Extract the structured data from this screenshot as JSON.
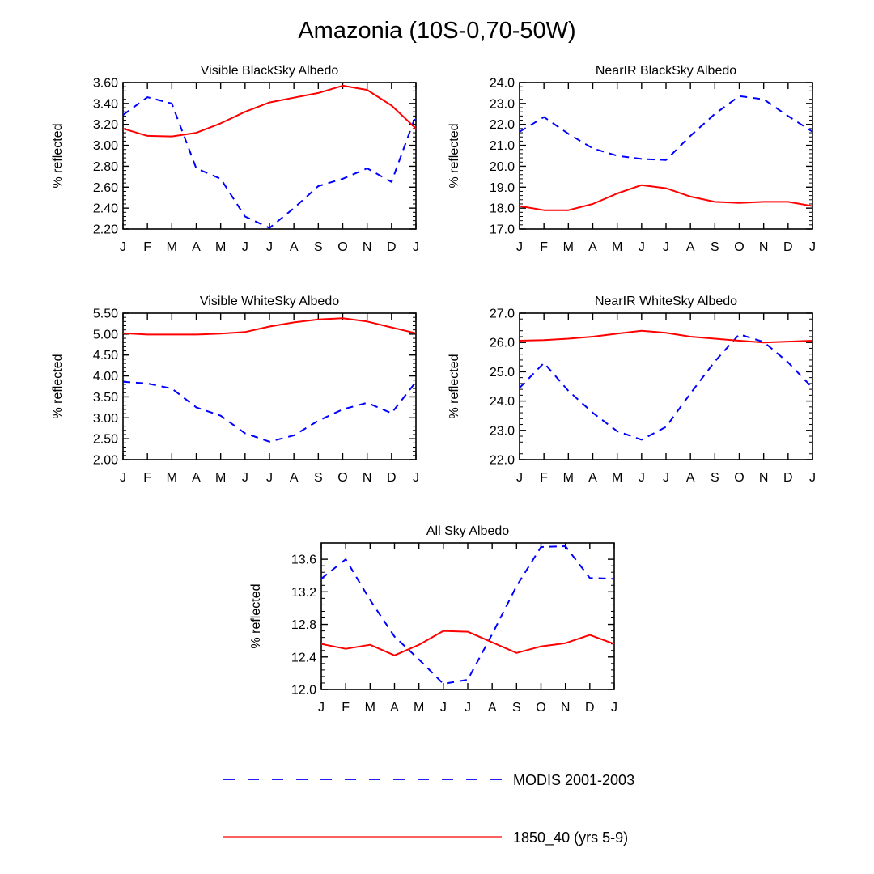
{
  "title": "Amazonia (10S-0,70-50W)",
  "legend": {
    "placement": "bottom",
    "entries": [
      {
        "label": "MODIS 2001-2003",
        "color": "#0000ff",
        "style": "dashed"
      },
      {
        "label": "1850_40 (yrs 5-9)",
        "color": "#ff0000",
        "style": "solid"
      }
    ]
  },
  "chart_data": [
    {
      "type": "line",
      "title": "Visible BlackSky Albedo",
      "xlabel": "",
      "ylabel": "% reflected",
      "categories": [
        "J",
        "F",
        "M",
        "A",
        "M",
        "J",
        "J",
        "A",
        "S",
        "O",
        "N",
        "D",
        "J"
      ],
      "ylim": [
        2.2,
        3.6
      ],
      "yticks": [
        2.2,
        2.4,
        2.6,
        2.8,
        3.0,
        3.2,
        3.4,
        3.6
      ],
      "ytick_labels": [
        "2.20",
        "2.40",
        "2.60",
        "2.80",
        "3.00",
        "3.20",
        "3.40",
        "3.60"
      ],
      "grid": false,
      "series": [
        {
          "name": "MODIS 2001-2003",
          "values": [
            3.29,
            3.46,
            3.4,
            2.78,
            2.68,
            2.32,
            2.21,
            2.4,
            2.61,
            2.68,
            2.78,
            2.65,
            3.29
          ]
        },
        {
          "name": "1850_40 (yrs 5-9)",
          "values": [
            3.16,
            3.09,
            3.085,
            3.12,
            3.21,
            3.32,
            3.41,
            3.455,
            3.5,
            3.57,
            3.53,
            3.38,
            3.16
          ]
        }
      ]
    },
    {
      "type": "line",
      "title": "NearIR BlackSky Albedo",
      "xlabel": "",
      "ylabel": "% reflected",
      "categories": [
        "J",
        "F",
        "M",
        "A",
        "M",
        "J",
        "J",
        "A",
        "S",
        "O",
        "N",
        "D",
        "J"
      ],
      "ylim": [
        17.0,
        24.0
      ],
      "yticks": [
        17,
        18,
        19,
        20,
        21,
        22,
        23,
        24
      ],
      "ytick_labels": [
        "17.0",
        "18.0",
        "19.0",
        "20.0",
        "21.0",
        "22.0",
        "23.0",
        "24.0"
      ],
      "grid": false,
      "series": [
        {
          "name": "MODIS 2001-2003",
          "values": [
            21.65,
            22.35,
            21.55,
            20.85,
            20.5,
            20.35,
            20.3,
            21.45,
            22.5,
            23.35,
            23.2,
            22.4,
            21.65
          ]
        },
        {
          "name": "1850_40 (yrs 5-9)",
          "values": [
            18.1,
            17.9,
            17.9,
            18.2,
            18.7,
            19.1,
            18.95,
            18.55,
            18.3,
            18.25,
            18.3,
            18.3,
            18.1
          ]
        }
      ]
    },
    {
      "type": "line",
      "title": "Visible WhiteSky Albedo",
      "xlabel": "",
      "ylabel": "% reflected",
      "categories": [
        "J",
        "F",
        "M",
        "A",
        "M",
        "J",
        "J",
        "A",
        "S",
        "O",
        "N",
        "D",
        "J"
      ],
      "ylim": [
        2.0,
        5.5
      ],
      "yticks": [
        2.0,
        2.5,
        3.0,
        3.5,
        4.0,
        4.5,
        5.0,
        5.5
      ],
      "ytick_labels": [
        "2.00",
        "2.50",
        "3.00",
        "3.50",
        "4.00",
        "4.50",
        "5.00",
        "5.50"
      ],
      "grid": false,
      "series": [
        {
          "name": "MODIS 2001-2003",
          "values": [
            3.86,
            3.82,
            3.7,
            3.25,
            3.05,
            2.63,
            2.43,
            2.58,
            2.93,
            3.2,
            3.36,
            3.11,
            3.86
          ]
        },
        {
          "name": "1850_40 (yrs 5-9)",
          "values": [
            5.02,
            4.99,
            4.99,
            4.99,
            5.01,
            5.05,
            5.18,
            5.28,
            5.35,
            5.38,
            5.3,
            5.16,
            5.02
          ]
        }
      ]
    },
    {
      "type": "line",
      "title": "NearIR WhiteSky Albedo",
      "xlabel": "",
      "ylabel": "% reflected",
      "categories": [
        "J",
        "F",
        "M",
        "A",
        "M",
        "J",
        "J",
        "A",
        "S",
        "O",
        "N",
        "D",
        "J"
      ],
      "ylim": [
        22.0,
        27.0
      ],
      "yticks": [
        22,
        23,
        24,
        25,
        26,
        27
      ],
      "ytick_labels": [
        "22.0",
        "23.0",
        "24.0",
        "25.0",
        "26.0",
        "27.0"
      ],
      "grid": false,
      "series": [
        {
          "name": "MODIS 2001-2003",
          "values": [
            24.45,
            25.3,
            24.35,
            23.6,
            22.97,
            22.68,
            23.12,
            24.26,
            25.35,
            26.28,
            26.02,
            25.32,
            24.45
          ]
        },
        {
          "name": "1850_40 (yrs 5-9)",
          "values": [
            26.06,
            26.08,
            26.13,
            26.2,
            26.3,
            26.4,
            26.33,
            26.2,
            26.13,
            26.06,
            26.0,
            26.03,
            26.06
          ]
        }
      ]
    },
    {
      "type": "line",
      "title": "All Sky Albedo",
      "xlabel": "",
      "ylabel": "% reflected",
      "categories": [
        "J",
        "F",
        "M",
        "A",
        "M",
        "J",
        "J",
        "A",
        "S",
        "O",
        "N",
        "D",
        "J"
      ],
      "ylim": [
        12.0,
        13.8
      ],
      "yticks": [
        12.0,
        12.4,
        12.8,
        13.2,
        13.6
      ],
      "ytick_labels": [
        "12.0",
        "12.4",
        "12.8",
        "13.2",
        "13.6"
      ],
      "grid": false,
      "series": [
        {
          "name": "MODIS 2001-2003",
          "values": [
            13.36,
            13.6,
            13.1,
            12.65,
            12.37,
            12.07,
            12.12,
            12.68,
            13.27,
            13.75,
            13.76,
            13.37,
            13.36
          ]
        },
        {
          "name": "1850_40 (yrs 5-9)",
          "values": [
            12.56,
            12.5,
            12.55,
            12.42,
            12.55,
            12.72,
            12.71,
            12.58,
            12.45,
            12.53,
            12.57,
            12.67,
            12.56
          ]
        }
      ]
    }
  ]
}
